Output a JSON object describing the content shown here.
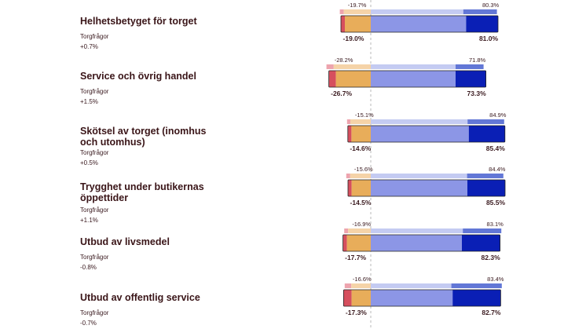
{
  "chart_data": {
    "type": "bar",
    "subtype": "diverging-stacked-comparison",
    "subtitle_label": "Torgfrågor",
    "colors": {
      "very_negative": "#d64f5e",
      "negative": "#e8ad5a",
      "positive": "#8c96e6",
      "very_positive": "#0a1fb5",
      "very_negative_prev": "#eda4ae",
      "negative_prev": "#f5d3a8",
      "positive_prev": "#c4cbf2",
      "very_positive_prev": "#6277d6",
      "center_line": "#b8b8b8",
      "outline": "#222222"
    },
    "rows": [
      {
        "title": "Helhetsbetyget för torget",
        "subtitle": "Torgfrågor",
        "change": "+0.7%",
        "current": {
          "very_negative": 2.5,
          "negative": 16.5,
          "positive": 60.7,
          "very_positive": 20.3,
          "neg_label": "-19.0%",
          "pos_label": "81.0%"
        },
        "previous": {
          "very_negative": 2.5,
          "negative": 17.2,
          "positive": 58.9,
          "very_positive": 21.4,
          "neg_label": "-19.7%",
          "pos_label": "80.3%"
        }
      },
      {
        "title": "Service och övrig handel",
        "subtitle": "Torgfrågor",
        "change": "+1.5%",
        "current": {
          "very_negative": 4.5,
          "negative": 22.2,
          "positive": 54.0,
          "very_positive": 19.3,
          "neg_label": "-26.7%",
          "pos_label": "73.3%"
        },
        "previous": {
          "very_negative": 4.6,
          "negative": 23.6,
          "positive": 54.0,
          "very_positive": 17.8,
          "neg_label": "-28.2%",
          "pos_label": "71.8%"
        }
      },
      {
        "title": "Skötsel av torget (inomhus och utomhus)",
        "subtitle": "Torgfrågor",
        "change": "+0.5%",
        "current": {
          "very_negative": 2.3,
          "negative": 12.3,
          "positive": 62.4,
          "very_positive": 23.0,
          "neg_label": "-14.6%",
          "pos_label": "85.4%"
        },
        "previous": {
          "very_negative": 2.1,
          "negative": 13.0,
          "positive": 61.6,
          "very_positive": 23.3,
          "neg_label": "-15.1%",
          "pos_label": "84.9%"
        }
      },
      {
        "title": "Trygghet under butikernas öppettider",
        "subtitle": "Torgfrågor",
        "change": "+1.1%",
        "current": {
          "very_negative": 2.3,
          "negative": 12.2,
          "positive": 61.5,
          "very_positive": 24.0,
          "neg_label": "-14.5%",
          "pos_label": "85.5%"
        },
        "previous": {
          "very_negative": 2.5,
          "negative": 13.1,
          "positive": 61.3,
          "very_positive": 23.1,
          "neg_label": "-15.6%",
          "pos_label": "84.4%"
        }
      },
      {
        "title": "Utbud av livsmedel",
        "subtitle": "Torgfrågor",
        "change": "-0.8%",
        "current": {
          "very_negative": 2.5,
          "negative": 15.2,
          "positive": 58.0,
          "very_positive": 24.3,
          "neg_label": "-17.7%",
          "pos_label": "82.3%"
        },
        "previous": {
          "very_negative": 2.5,
          "negative": 14.4,
          "positive": 58.6,
          "very_positive": 24.5,
          "neg_label": "-16.9%",
          "pos_label": "83.1%"
        }
      },
      {
        "title": "Utbud av offentlig service",
        "subtitle": "Torgfrågor",
        "change": "-0.7%",
        "current": {
          "very_negative": 5.1,
          "negative": 12.2,
          "positive": 52.1,
          "very_positive": 30.6,
          "neg_label": "-17.3%",
          "pos_label": "82.7%"
        },
        "previous": {
          "very_negative": 4.2,
          "negative": 12.4,
          "positive": 51.3,
          "very_positive": 32.1,
          "neg_label": "-16.6%",
          "pos_label": "83.4%"
        }
      }
    ]
  }
}
